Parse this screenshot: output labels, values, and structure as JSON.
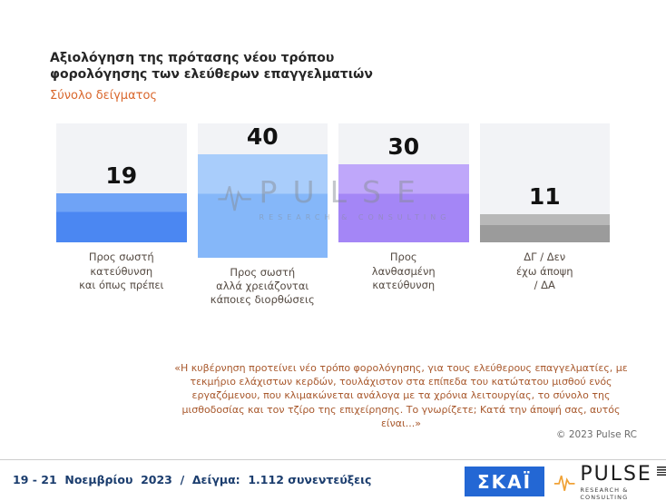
{
  "header": {
    "title": "Αξιολόγηση της πρότασης νέου τρόπου\nφορολόγησης των ελεύθερων επαγγελματιών",
    "subtitle": "Σύνολο δείγματος"
  },
  "chart_data": {
    "type": "bar",
    "title": "Αξιολόγηση της πρότασης νέου τρόπου φορολόγησης των ελεύθερων επαγγελματιών",
    "subtitle": "Σύνολο δείγματος",
    "categories": [
      "Προς σωστή\nκατεύθυνση\nκαι όπως πρέπει",
      "Προς σωστή\nαλλά χρειάζονται\nκάποιες διορθώσεις",
      "Προς\nλανθασμένη\nκατεύθυνση",
      "ΔΓ / Δεν\nέχω άποψη\n/ ΔΑ"
    ],
    "values": [
      19,
      40,
      30,
      11
    ],
    "colors": [
      "#4b87f2",
      "#85b7f9",
      "#a486f6",
      "#9b9b9b"
    ],
    "colors_light": [
      "#6fa3f6",
      "#a9cdfb",
      "#bfa7fa",
      "#b8b8b8"
    ],
    "ylim": [
      0,
      45
    ],
    "legend": "none",
    "grid": false
  },
  "watermark": {
    "text": "PULSE",
    "subtext": "RESEARCH & CONSULTING"
  },
  "footnote": {
    "text": "«Η κυβέρνηση προτείνει νέο τρόπο φορολόγησης, για τους ελεύθερους επαγγελματίες, με τεκμήριο ελάχιστων κερδών, τουλάχιστον στα επίπεδα του κατώτατου μισθού ενός εργαζόμενου, που κλιμακώνεται ανάλογα με τα χρόνια λειτουργίας, το σύνολο της μισθοδοσίας και τον τζίρο της επιχείρησης. Το γνωρίζετε; Κατά την άποψή σας, αυτός είναι...»"
  },
  "copyright": "© 2023 Pulse RC",
  "footer": {
    "date_sample": "19 - 21  Νοεμβρίου  2023  /  Δείγμα:  1.112 συνεντεύξεις"
  },
  "logos": {
    "skai": "ΣΚΑΪ",
    "pulse": "PULSE",
    "pulse_sub": "RESEARCH & CONSULTING"
  },
  "colors": {
    "accent_orange": "#d9662b",
    "footnote_brown": "#a8582c",
    "footer_navy": "#1b3d6e",
    "skai_blue": "#2367d4",
    "pulse_orange": "#f0a236",
    "panel_bg": "#f2f3f6"
  }
}
